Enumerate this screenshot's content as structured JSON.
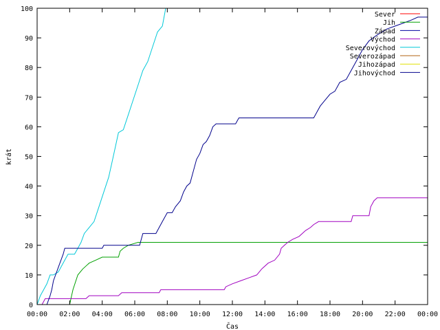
{
  "chart_data": {
    "type": "line",
    "xlabel": "Čas",
    "ylabel": "krát",
    "xlim": [
      0,
      24
    ],
    "ylim": [
      0,
      100
    ],
    "grid": false,
    "legend_placement": "top-right",
    "x_ticks": [
      "00:00",
      "02:00",
      "04:00",
      "06:00",
      "08:00",
      "10:00",
      "12:00",
      "14:00",
      "16:00",
      "18:00",
      "20:00",
      "22:00",
      "00:00"
    ],
    "y_ticks": [
      0,
      10,
      20,
      30,
      40,
      50,
      60,
      70,
      80,
      90,
      100
    ],
    "series": [
      {
        "name": "Sever",
        "color": "#ff0000",
        "points": []
      },
      {
        "name": "Jih",
        "color": "#00a000",
        "points": [
          [
            0,
            0
          ],
          [
            2.0,
            0
          ],
          [
            2.2,
            5
          ],
          [
            2.5,
            10
          ],
          [
            2.8,
            12
          ],
          [
            3.2,
            14
          ],
          [
            3.6,
            15
          ],
          [
            4.0,
            16
          ],
          [
            5.0,
            16
          ],
          [
            5.1,
            18
          ],
          [
            5.3,
            19
          ],
          [
            5.6,
            20
          ],
          [
            6.2,
            21
          ],
          [
            24,
            21
          ]
        ]
      },
      {
        "name": "Západ",
        "color": "#0000a0",
        "points": []
      },
      {
        "name": "Východ",
        "color": "#a000c0",
        "points": [
          [
            0.3,
            0
          ],
          [
            0.5,
            2
          ],
          [
            3.0,
            2
          ],
          [
            3.2,
            3
          ],
          [
            5.0,
            3
          ],
          [
            5.2,
            4
          ],
          [
            7.5,
            4
          ],
          [
            7.6,
            5
          ],
          [
            11.5,
            5
          ],
          [
            11.6,
            6
          ],
          [
            12.0,
            7
          ],
          [
            12.5,
            8
          ],
          [
            13.0,
            9
          ],
          [
            13.5,
            10
          ],
          [
            13.8,
            12
          ],
          [
            14.2,
            14
          ],
          [
            14.6,
            15
          ],
          [
            14.9,
            17
          ],
          [
            15.0,
            19
          ],
          [
            15.2,
            20
          ],
          [
            15.4,
            21
          ],
          [
            15.7,
            22
          ],
          [
            16.1,
            23
          ],
          [
            16.5,
            25
          ],
          [
            16.8,
            26
          ],
          [
            17.0,
            27
          ],
          [
            17.3,
            28
          ],
          [
            19.3,
            28
          ],
          [
            19.4,
            30
          ],
          [
            20.4,
            30
          ],
          [
            20.5,
            33
          ],
          [
            20.7,
            35
          ],
          [
            20.9,
            36
          ],
          [
            24,
            36
          ]
        ]
      },
      {
        "name": "Severovýchod",
        "color": "#00c8d8",
        "points": [
          [
            0,
            0
          ],
          [
            0.2,
            3
          ],
          [
            0.4,
            5
          ],
          [
            0.6,
            7
          ],
          [
            0.8,
            10
          ],
          [
            1.0,
            10
          ],
          [
            1.3,
            11
          ],
          [
            1.5,
            13
          ],
          [
            1.7,
            15
          ],
          [
            1.9,
            17
          ],
          [
            2.3,
            17
          ],
          [
            2.5,
            19
          ],
          [
            2.7,
            21
          ],
          [
            2.9,
            24
          ],
          [
            3.2,
            26
          ],
          [
            3.5,
            28
          ],
          [
            3.8,
            33
          ],
          [
            4.1,
            38
          ],
          [
            4.4,
            43
          ],
          [
            4.6,
            48
          ],
          [
            4.8,
            53
          ],
          [
            5.0,
            58
          ],
          [
            5.3,
            59
          ],
          [
            5.6,
            64
          ],
          [
            5.9,
            69
          ],
          [
            6.2,
            74
          ],
          [
            6.5,
            79
          ],
          [
            6.8,
            82
          ],
          [
            7.1,
            87
          ],
          [
            7.4,
            92
          ],
          [
            7.7,
            94
          ],
          [
            7.9,
            100
          ]
        ]
      },
      {
        "name": "Severozápad",
        "color": "#b06010",
        "points": []
      },
      {
        "name": "Jihozápad",
        "color": "#e0e000",
        "points": []
      },
      {
        "name": "Jihovýchod",
        "color": "#00008b",
        "points": [
          [
            0.6,
            0
          ],
          [
            0.8,
            3
          ],
          [
            0.9,
            5
          ],
          [
            1.0,
            8
          ],
          [
            1.2,
            11
          ],
          [
            1.4,
            14
          ],
          [
            1.6,
            17
          ],
          [
            1.7,
            19
          ],
          [
            4.0,
            19
          ],
          [
            4.1,
            20
          ],
          [
            6.3,
            20
          ],
          [
            6.5,
            24
          ],
          [
            7.3,
            24
          ],
          [
            7.5,
            26
          ],
          [
            7.7,
            28
          ],
          [
            8.0,
            31
          ],
          [
            8.3,
            31
          ],
          [
            8.5,
            33
          ],
          [
            8.8,
            35
          ],
          [
            9.0,
            38
          ],
          [
            9.2,
            40
          ],
          [
            9.4,
            41
          ],
          [
            9.6,
            45
          ],
          [
            9.8,
            49
          ],
          [
            10.0,
            51
          ],
          [
            10.2,
            54
          ],
          [
            10.4,
            55
          ],
          [
            10.6,
            57
          ],
          [
            10.8,
            60
          ],
          [
            11.0,
            61
          ],
          [
            12.2,
            61
          ],
          [
            12.3,
            62
          ],
          [
            12.4,
            63
          ],
          [
            17.0,
            63
          ],
          [
            17.2,
            65
          ],
          [
            17.4,
            67
          ],
          [
            17.7,
            69
          ],
          [
            18.0,
            71
          ],
          [
            18.3,
            72
          ],
          [
            18.6,
            75
          ],
          [
            19.0,
            76
          ],
          [
            19.3,
            79
          ],
          [
            19.6,
            82
          ],
          [
            20.0,
            86
          ],
          [
            20.4,
            89
          ],
          [
            20.9,
            91
          ],
          [
            21.5,
            93
          ],
          [
            22.0,
            94
          ],
          [
            22.5,
            95
          ],
          [
            23.0,
            96
          ],
          [
            23.4,
            97
          ],
          [
            24,
            97
          ]
        ]
      }
    ]
  }
}
